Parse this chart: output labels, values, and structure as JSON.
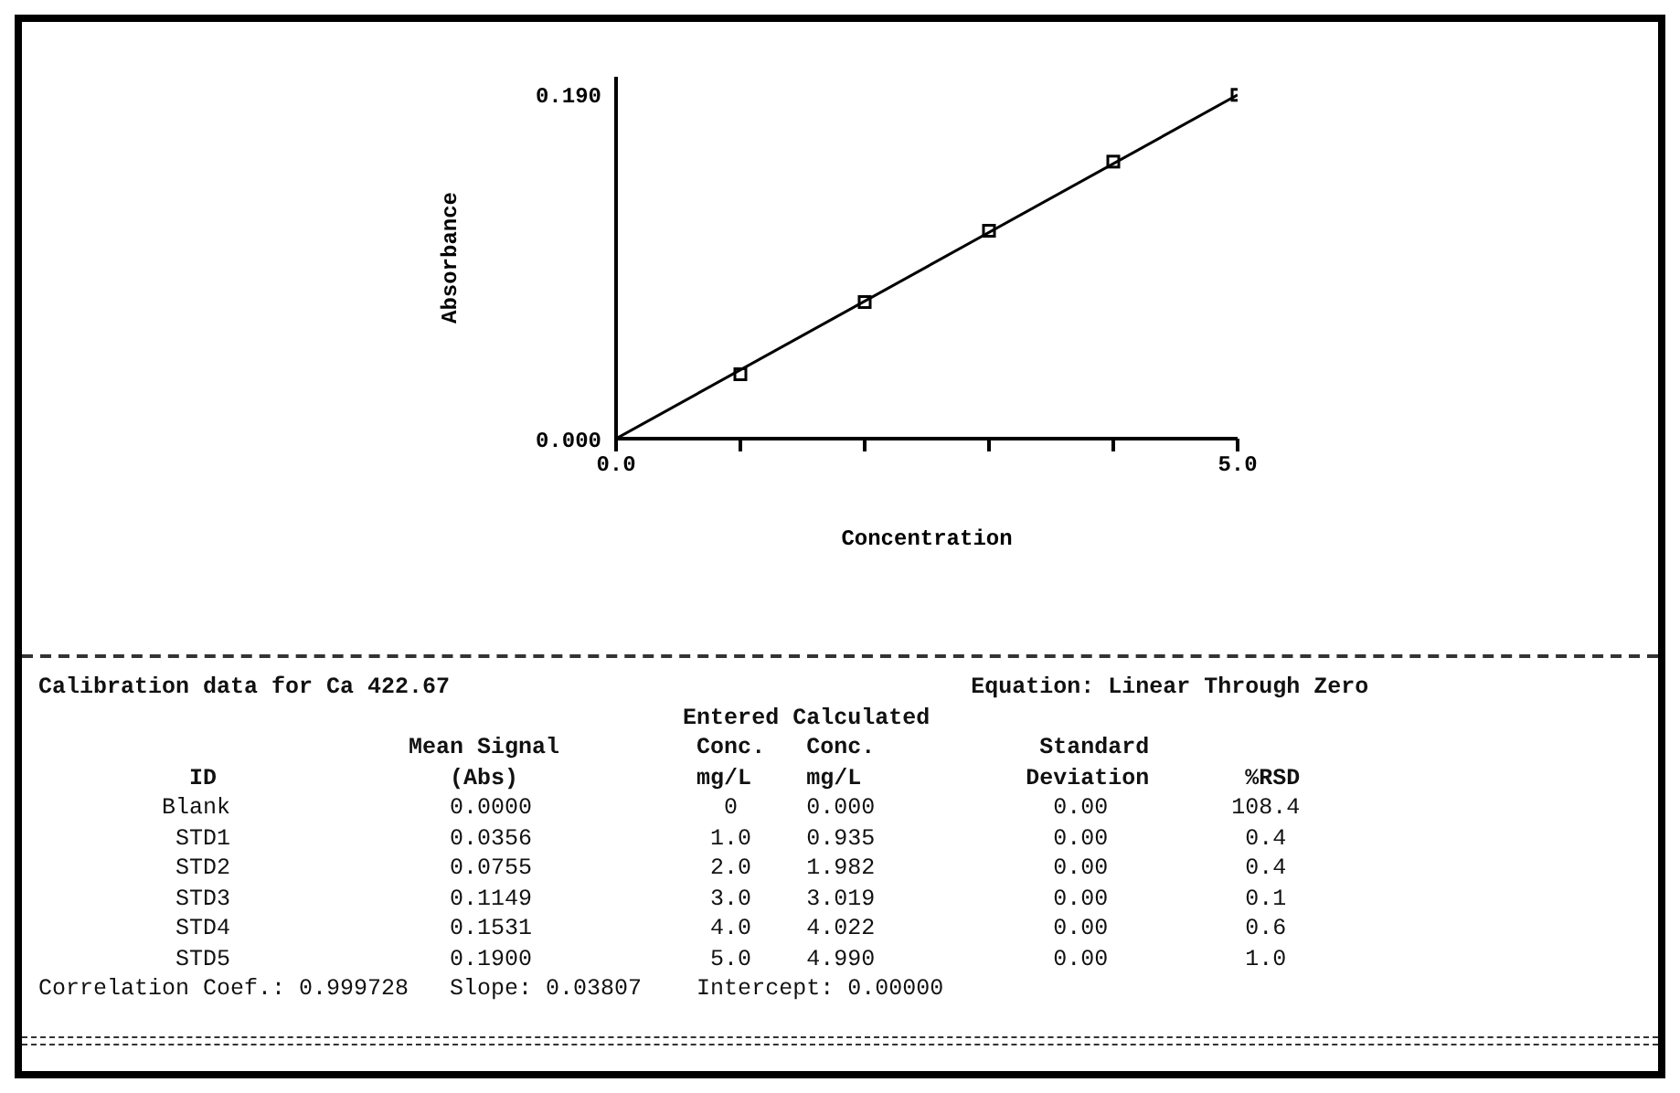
{
  "chart_data": {
    "type": "scatter",
    "xlabel": "Concentration",
    "ylabel": "Absorbance",
    "xlim": [
      0,
      5
    ],
    "ylim": [
      0,
      0.2
    ],
    "xticks": [
      {
        "value": 0,
        "label": "0.0"
      },
      {
        "value": 1,
        "label": null
      },
      {
        "value": 2,
        "label": null
      },
      {
        "value": 3,
        "label": null
      },
      {
        "value": 4,
        "label": null
      },
      {
        "value": 5,
        "label": "5.0"
      }
    ],
    "yticks": [
      {
        "value": 0,
        "label": "0.000"
      },
      {
        "value": 0.19,
        "label": "0.190"
      }
    ],
    "series": [
      {
        "color": "#000000",
        "x": [
          1,
          2,
          3,
          4,
          5
        ],
        "values": [
          0.0356,
          0.0755,
          0.1149,
          0.1531,
          0.19
        ],
        "marker": "square"
      },
      {
        "type": "line",
        "color": "#000000",
        "x": [
          0,
          5
        ],
        "values": [
          0,
          0.19
        ],
        "marker": "none",
        "line_style": "solid"
      }
    ],
    "annotations": [
      "Calibration data for Ca 422.67                                      Equation: Linear Through Zero",
      "                                               Entered Calculated",
      "                           Mean Signal          Conc.   Conc.            Standard",
      "           ID                 (Abs)             mg/L    mg/L            Deviation       %RSD",
      "         Blank                0.0000              0     0.000             0.00         108.4",
      "          STD1                0.0356             1.0    0.935             0.00          0.4",
      "          STD2                0.0755             2.0    1.982             0.00          0.4",
      "          STD3                0.1149             3.0    3.019             0.00          0.1",
      "          STD4                0.1531             4.0    4.022             0.00          0.6",
      "          STD5                0.1900             5.0    4.990             0.00          1.0",
      "Correlation Coef.: 0.999728   Slope: 0.03807    Intercept: 0.00000"
    ]
  }
}
